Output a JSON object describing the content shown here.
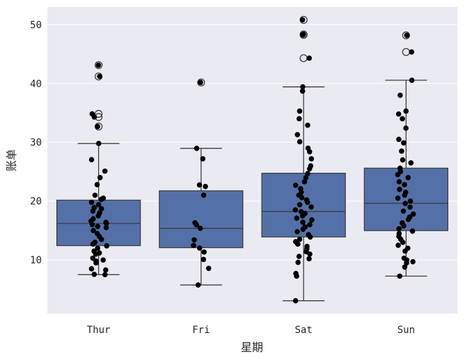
{
  "chart_data": {
    "type": "box",
    "xlabel": "星期",
    "ylabel": "账单",
    "categories": [
      "Thur",
      "Fri",
      "Sat",
      "Sun"
    ],
    "ylim": [
      0.9,
      53
    ],
    "yticks": [
      10,
      20,
      30,
      40,
      50
    ],
    "grid": true,
    "colors": {
      "box": "#5470a8",
      "background": "#eaeaf2",
      "points": "#000000",
      "grid": "#ffffff"
    },
    "boxes": [
      {
        "category": "Thur",
        "whisker_low": 7.51,
        "q1": 12.44,
        "median": 16.2,
        "q3": 20.16,
        "whisker_high": 29.8,
        "outliers": [
          32.68,
          34.3,
          34.83,
          41.19,
          43.11
        ]
      },
      {
        "category": "Fri",
        "whisker_low": 5.75,
        "q1": 12.09,
        "median": 15.38,
        "q3": 21.75,
        "whisker_high": 28.97,
        "outliers": [
          40.17
        ]
      },
      {
        "category": "Sat",
        "whisker_low": 3.07,
        "q1": 13.91,
        "median": 18.24,
        "q3": 24.74,
        "whisker_high": 39.42,
        "outliers": [
          44.3,
          48.27,
          48.33,
          50.81
        ]
      },
      {
        "category": "Sun",
        "whisker_low": 7.25,
        "q1": 14.99,
        "median": 19.63,
        "q3": 25.6,
        "whisker_high": 40.55,
        "outliers": [
          45.35,
          48.17
        ]
      }
    ],
    "points": [
      [
        43.11,
        41.19,
        34.83,
        34.3,
        32.68,
        29.8,
        27.05,
        25.1,
        24.0,
        22.8,
        21.0,
        20.5,
        20.3,
        19.8,
        19.4,
        18.9,
        18.7,
        18.3,
        18.0,
        17.5,
        17.0,
        16.6,
        16.4,
        16.2,
        16.0,
        15.7,
        15.5,
        15.0,
        14.5,
        14.0,
        13.5,
        13.0,
        12.7,
        12.4,
        12.0,
        11.5,
        11.2,
        11.0,
        10.3,
        10.0,
        9.8,
        9.5,
        8.5,
        8.3,
        7.56,
        7.51
      ],
      [
        40.17,
        28.97,
        27.2,
        22.75,
        22.49,
        21.01,
        16.32,
        15.98,
        15.38,
        13.42,
        12.46,
        12.03,
        11.35,
        10.09,
        8.58,
        5.75
      ],
      [
        50.81,
        48.33,
        48.27,
        44.3,
        39.42,
        38.7,
        35.3,
        34.0,
        32.9,
        31.3,
        30.1,
        29.0,
        28.4,
        27.2,
        26.0,
        25.5,
        24.7,
        24.0,
        23.3,
        22.7,
        22.1,
        21.5,
        21.0,
        20.6,
        20.2,
        19.8,
        19.4,
        19.0,
        18.5,
        18.2,
        17.9,
        17.5,
        17.1,
        16.8,
        16.4,
        16.0,
        15.6,
        15.2,
        14.8,
        14.3,
        13.9,
        13.5,
        13.1,
        12.7,
        12.3,
        11.9,
        11.4,
        11.0,
        10.6,
        10.2,
        9.6,
        7.7,
        7.25,
        3.07
      ],
      [
        48.17,
        45.35,
        40.55,
        38.0,
        35.3,
        34.8,
        34.0,
        32.4,
        30.5,
        29.9,
        28.5,
        27.0,
        26.5,
        25.6,
        25.0,
        24.5,
        24.0,
        23.3,
        22.8,
        22.0,
        21.5,
        21.0,
        20.5,
        20.0,
        19.6,
        19.0,
        18.3,
        17.8,
        17.3,
        16.9,
        16.3,
        15.8,
        15.3,
        14.9,
        14.5,
        14.0,
        13.5,
        13.0,
        12.5,
        12.0,
        11.5,
        10.3,
        10.0,
        9.7,
        9.5,
        8.8,
        7.25
      ]
    ]
  }
}
